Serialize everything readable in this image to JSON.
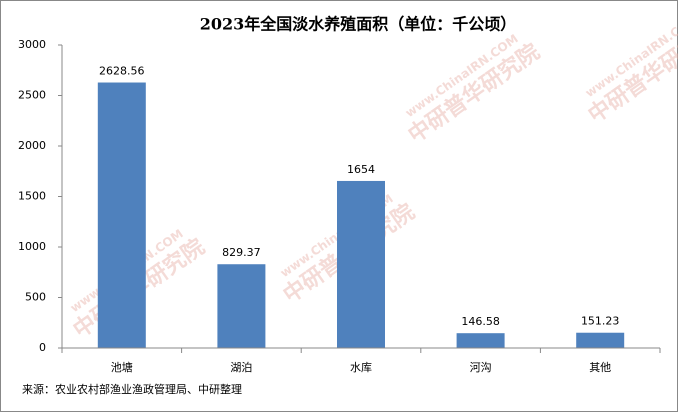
{
  "chart_data": {
    "type": "bar",
    "title": "2023年全国淡水养殖面积（单位：千公顷）",
    "categories": [
      "池塘",
      "湖泊",
      "水库",
      "河沟",
      "其他"
    ],
    "values": [
      2628.56,
      829.37,
      1654,
      146.58,
      151.23
    ],
    "color": "#4f81bd",
    "ylim": [
      0,
      3000
    ],
    "yticks": [
      0,
      500,
      1000,
      1500,
      2000,
      2500,
      3000
    ],
    "grid": false,
    "source": "来源：农业农村部渔业渔政管理局、中研整理",
    "watermark": "中研普华研究院",
    "watermark_url": "www.ChinaIRN.COM"
  }
}
